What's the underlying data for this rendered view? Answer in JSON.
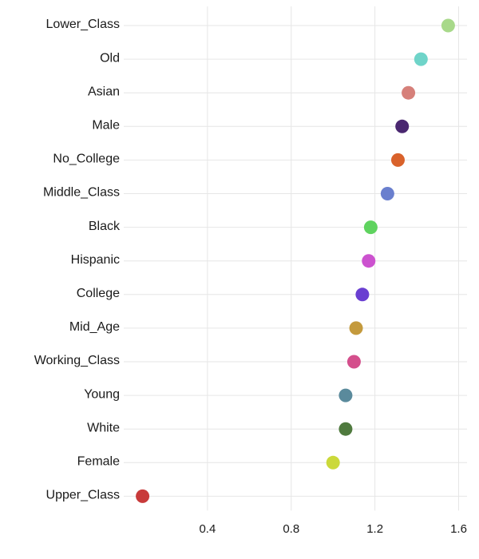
{
  "chart_data": {
    "type": "scatter",
    "title": "",
    "xlabel": "",
    "ylabel": "",
    "grid": true,
    "legend": "none",
    "xlim": [
      0.0,
      1.64
    ],
    "xticks": [
      0.4,
      0.8,
      1.2,
      1.6
    ],
    "xtick_labels": [
      "0.4",
      "0.8",
      "1.2",
      "1.6"
    ],
    "points": [
      {
        "label": "Lower_Class",
        "value": 1.55,
        "color": "#a8d98a"
      },
      {
        "label": "Old",
        "value": 1.42,
        "color": "#6fd4c9"
      },
      {
        "label": "Asian",
        "value": 1.36,
        "color": "#d6807a"
      },
      {
        "label": "Male",
        "value": 1.33,
        "color": "#4a2770"
      },
      {
        "label": "No_College",
        "value": 1.31,
        "color": "#d9622b"
      },
      {
        "label": "Middle_Class",
        "value": 1.26,
        "color": "#6a7fce"
      },
      {
        "label": "Black",
        "value": 1.18,
        "color": "#5fd35f"
      },
      {
        "label": "Hispanic",
        "value": 1.17,
        "color": "#cc52cf"
      },
      {
        "label": "College",
        "value": 1.14,
        "color": "#6a3fd1"
      },
      {
        "label": "Mid_Age",
        "value": 1.11,
        "color": "#c49a3d"
      },
      {
        "label": "Working_Class",
        "value": 1.1,
        "color": "#d44f8c"
      },
      {
        "label": "Young",
        "value": 1.06,
        "color": "#5a8a9c"
      },
      {
        "label": "White",
        "value": 1.06,
        "color": "#4f7a3e"
      },
      {
        "label": "Female",
        "value": 1.0,
        "color": "#cbd93a"
      },
      {
        "label": "Upper_Class",
        "value": 0.09,
        "color": "#c83a3a"
      }
    ]
  }
}
